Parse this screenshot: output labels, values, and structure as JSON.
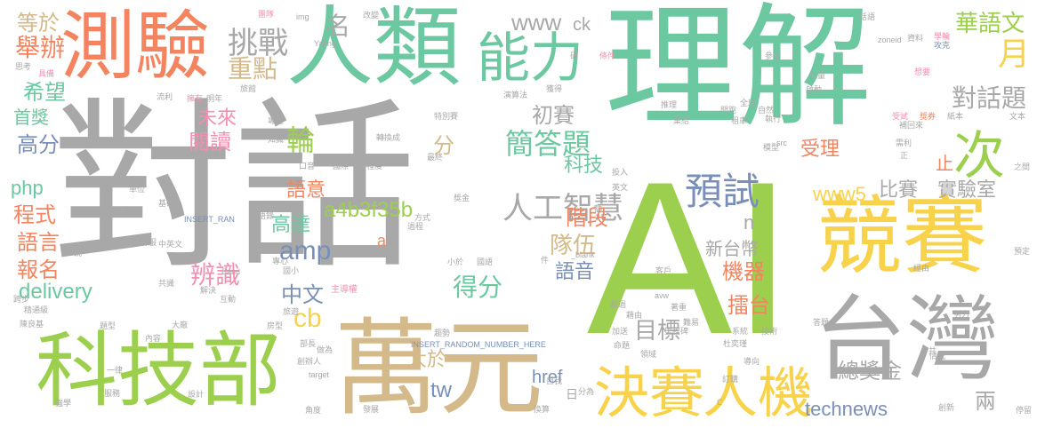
{
  "words": [
    {
      "text": "對話",
      "color": "#a8a8a8"
    },
    {
      "text": "理解",
      "color": "#6cc8a0"
    },
    {
      "text": "AI",
      "color": "#9ccf4e"
    },
    {
      "text": "人類",
      "color": "#6cc8a0"
    },
    {
      "text": "測驗",
      "color": "#f4845f"
    },
    {
      "text": "能力",
      "color": "#6cc8a0"
    },
    {
      "text": "競賽",
      "color": "#f7d24a"
    },
    {
      "text": "台灣",
      "color": "#a8a8a8"
    },
    {
      "text": "萬元",
      "color": "#d4b98a"
    },
    {
      "text": "科技部",
      "color": "#9ccf4e"
    },
    {
      "text": "決賽",
      "color": "#f7d24a"
    },
    {
      "text": "人機",
      "color": "#f7d24a"
    },
    {
      "text": "次",
      "color": "#9ccf4e"
    },
    {
      "text": "預試",
      "color": "#7a8fb8"
    },
    {
      "text": "人工智慧",
      "color": "#a8a8a8"
    },
    {
      "text": "對話題",
      "color": "#a8a8a8"
    },
    {
      "text": "華語文",
      "color": "#9ccf4e"
    },
    {
      "text": "月",
      "color": "#f7d24a"
    },
    {
      "text": "挑戰",
      "color": "#a8a8a8"
    },
    {
      "text": "名",
      "color": "#a8a8a8"
    },
    {
      "text": "www",
      "color": "#a8a8a8"
    },
    {
      "text": "ck",
      "color": "#a8a8a8"
    },
    {
      "text": "等於",
      "color": "#d4b98a"
    },
    {
      "text": "舉辦",
      "color": "#f4845f"
    },
    {
      "text": "希望",
      "color": "#6cc8a0"
    },
    {
      "text": "首獎",
      "color": "#6cc8a0"
    },
    {
      "text": "高分",
      "color": "#7a8fb8"
    },
    {
      "text": "php",
      "color": "#6cc8a0"
    },
    {
      "text": "程式",
      "color": "#f4845f"
    },
    {
      "text": "語言",
      "color": "#f4845f"
    },
    {
      "text": "報名",
      "color": "#f4845f"
    },
    {
      "text": "delivery",
      "color": "#6cc8a0"
    },
    {
      "text": "重點",
      "color": "#d4b98a"
    },
    {
      "text": "未來",
      "color": "#f48fb1"
    },
    {
      "text": "閱讀",
      "color": "#f48fb1"
    },
    {
      "text": "輪",
      "color": "#9ccf4e"
    },
    {
      "text": "語意",
      "color": "#f4845f"
    },
    {
      "text": "a4b3f35b",
      "color": "#9ccf4e"
    },
    {
      "text": "高達",
      "color": "#6cc8a0"
    },
    {
      "text": "amp",
      "color": "#7a8fb8"
    },
    {
      "text": "辨識",
      "color": "#f48fb1"
    },
    {
      "text": "中文",
      "color": "#7a8fb8"
    },
    {
      "text": "cb",
      "color": "#f7d24a"
    },
    {
      "text": "簡答題",
      "color": "#6cc8a0"
    },
    {
      "text": "初賽",
      "color": "#a8a8a8"
    },
    {
      "text": "分",
      "color": "#d4b98a"
    },
    {
      "text": "科技",
      "color": "#6cc8a0"
    },
    {
      "text": "階段",
      "color": "#f4845f"
    },
    {
      "text": "隊伍",
      "color": "#d4b98a"
    },
    {
      "text": "比賽",
      "color": "#a8a8a8"
    },
    {
      "text": "實驗室",
      "color": "#a8a8a8"
    },
    {
      "text": "www5",
      "color": "#f7d24a"
    },
    {
      "text": "受理",
      "color": "#f4845f"
    },
    {
      "text": "止",
      "color": "#f4845f"
    },
    {
      "text": "新台幣",
      "color": "#a8a8a8"
    },
    {
      "text": "機器",
      "color": "#f4845f"
    },
    {
      "text": "語音",
      "color": "#7a8fb8"
    },
    {
      "text": "得分",
      "color": "#6cc8a0"
    },
    {
      "text": "擂台",
      "color": "#f4845f"
    },
    {
      "text": "目標",
      "color": "#a8a8a8"
    },
    {
      "text": "大於",
      "color": "#d4b98a"
    },
    {
      "text": "href",
      "color": "#7a8fb8"
    },
    {
      "text": "tw",
      "color": "#7a8fb8"
    },
    {
      "text": "總獎金",
      "color": "#a8a8a8"
    },
    {
      "text": "technews",
      "color": "#7a8fb8"
    },
    {
      "text": "兩",
      "color": "#a8a8a8"
    },
    {
      "text": "n",
      "color": "#a8a8a8"
    },
    {
      "text": "a",
      "color": "#f4845f"
    },
    {
      "text": "INSERT_RANDOM_NUMBER_HERE",
      "color": "#7a8fb8"
    },
    {
      "text": "INSERT_RAN",
      "color": "#7a8fb8"
    },
    {
      "text": "主導權",
      "color": "#f48fb1"
    },
    {
      "text": "_blank",
      "color": "#a8a8a8"
    },
    {
      "text": "img",
      "color": "#a8a8a8"
    },
    {
      "text": "Yating",
      "color": "#a8a8a8"
    },
    {
      "text": "zoneid",
      "color": "#a8a8a8"
    },
    {
      "text": "src",
      "color": "#a8a8a8"
    },
    {
      "text": "Band",
      "color": "#a8a8a8"
    },
    {
      "text": "target",
      "color": "#a8a8a8"
    },
    {
      "text": "avw",
      "color": "#a8a8a8"
    },
    {
      "text": "改變",
      "color": "#a8a8a8"
    },
    {
      "text": "團隊",
      "color": "#f48fb1"
    },
    {
      "text": "研",
      "color": "#a8a8a8"
    },
    {
      "text": "條件",
      "color": "#f48fb1"
    },
    {
      "text": "資料",
      "color": "#a8a8a8"
    },
    {
      "text": "學輪",
      "color": "#f48fb1"
    },
    {
      "text": "攻克",
      "color": "#7a8fb8"
    },
    {
      "text": "思考",
      "color": "#a8a8a8"
    },
    {
      "text": "具備",
      "color": "#f48fb1"
    },
    {
      "text": "流利",
      "color": "#a8a8a8"
    },
    {
      "text": "旅館",
      "color": "#a8a8a8"
    },
    {
      "text": "擁有",
      "color": "#f48fb1"
    },
    {
      "text": "明年",
      "color": "#a8a8a8"
    },
    {
      "text": "演算法",
      "color": "#a8a8a8"
    },
    {
      "text": "獲得",
      "color": "#a8a8a8"
    },
    {
      "text": "推理",
      "color": "#a8a8a8"
    },
    {
      "text": "全球",
      "color": "#a8a8a8"
    },
    {
      "text": "自然",
      "color": "#a8a8a8"
    },
    {
      "text": "執行",
      "color": "#a8a8a8"
    },
    {
      "text": "開跑",
      "color": "#a8a8a8"
    },
    {
      "text": "想要",
      "color": "#f48fb1"
    },
    {
      "text": "能量",
      "color": "#a8a8a8"
    },
    {
      "text": "啟動",
      "color": "#a8a8a8"
    },
    {
      "text": "受試",
      "color": "#f48fb1"
    },
    {
      "text": "獎券",
      "color": "#f4845f"
    },
    {
      "text": "紙本",
      "color": "#a8a8a8"
    },
    {
      "text": "文本",
      "color": "#a8a8a8"
    },
    {
      "text": "補回來",
      "color": "#a8a8a8"
    },
    {
      "text": "需利",
      "color": "#a8a8a8"
    },
    {
      "text": "之間",
      "color": "#a8a8a8"
    },
    {
      "text": "專注",
      "color": "#a8a8a8"
    },
    {
      "text": "轉換成",
      "color": "#a8a8a8"
    },
    {
      "text": "集結",
      "color": "#a8a8a8"
    },
    {
      "text": "租車",
      "color": "#a8a8a8"
    },
    {
      "text": "模型",
      "color": "#a8a8a8"
    },
    {
      "text": "知識",
      "color": "#a8a8a8"
    },
    {
      "text": "國際",
      "color": "#a8a8a8"
    },
    {
      "text": "程度",
      "color": "#a8a8a8"
    },
    {
      "text": "口音",
      "color": "#a8a8a8"
    },
    {
      "text": "最終",
      "color": "#a8a8a8"
    },
    {
      "text": "單位",
      "color": "#a8a8a8"
    },
    {
      "text": "基礎",
      "color": "#a8a8a8"
    },
    {
      "text": "獎勵金",
      "color": "#a8a8a8"
    },
    {
      "text": "語錄",
      "color": "#a8a8a8"
    },
    {
      "text": "投入",
      "color": "#a8a8a8"
    },
    {
      "text": "英文",
      "color": "#a8a8a8"
    },
    {
      "text": "獎金",
      "color": "#a8a8a8"
    },
    {
      "text": "灰難",
      "color": "#a8a8a8"
    },
    {
      "text": "中英文",
      "color": "#a8a8a8"
    },
    {
      "text": "客服",
      "color": "#a8a8a8"
    },
    {
      "text": "國小",
      "color": "#a8a8a8"
    },
    {
      "text": "專心",
      "color": "#a8a8a8"
    },
    {
      "text": "說",
      "color": "#a8a8a8"
    },
    {
      "text": "共識",
      "color": "#a8a8a8"
    },
    {
      "text": "解決",
      "color": "#a8a8a8"
    },
    {
      "text": "跨步",
      "color": "#a8a8a8"
    },
    {
      "text": "精通級",
      "color": "#a8a8a8"
    },
    {
      "text": "互動",
      "color": "#a8a8a8"
    },
    {
      "text": "陳良基",
      "color": "#a8a8a8"
    },
    {
      "text": "題型",
      "color": "#a8a8a8"
    },
    {
      "text": "趨勢",
      "color": "#a8a8a8"
    },
    {
      "text": "內容",
      "color": "#a8a8a8"
    },
    {
      "text": "大廠",
      "color": "#a8a8a8"
    },
    {
      "text": "部長",
      "color": "#a8a8a8"
    },
    {
      "text": "房型",
      "color": "#a8a8a8"
    },
    {
      "text": "一律",
      "color": "#a8a8a8"
    },
    {
      "text": "創辦人",
      "color": "#a8a8a8"
    },
    {
      "text": "做為",
      "color": "#a8a8a8"
    },
    {
      "text": "服務",
      "color": "#a8a8a8"
    },
    {
      "text": "強學",
      "color": "#a8a8a8"
    },
    {
      "text": "設計",
      "color": "#a8a8a8"
    },
    {
      "text": "角度",
      "color": "#a8a8a8"
    },
    {
      "text": "發展",
      "color": "#a8a8a8"
    },
    {
      "text": "自我",
      "color": "#a8a8a8"
    },
    {
      "text": "換算",
      "color": "#a8a8a8"
    },
    {
      "text": "分為",
      "color": "#a8a8a8"
    },
    {
      "text": "日",
      "color": "#a8a8a8"
    },
    {
      "text": "領域",
      "color": "#a8a8a8"
    },
    {
      "text": "命題",
      "color": "#a8a8a8"
    },
    {
      "text": "加送",
      "color": "#a8a8a8"
    },
    {
      "text": "里程碑",
      "color": "#a8a8a8"
    },
    {
      "text": "杜奕瑾",
      "color": "#a8a8a8"
    },
    {
      "text": "導向",
      "color": "#a8a8a8"
    },
    {
      "text": "訂購",
      "color": "#a8a8a8"
    },
    {
      "text": "系統",
      "color": "#a8a8a8"
    },
    {
      "text": "技術",
      "color": "#a8a8a8"
    },
    {
      "text": "答題",
      "color": "#a8a8a8"
    },
    {
      "text": "創新",
      "color": "#a8a8a8"
    },
    {
      "text": "停留",
      "color": "#a8a8a8"
    },
    {
      "text": "努力",
      "color": "#a8a8a8"
    },
    {
      "text": "情況",
      "color": "#a8a8a8"
    },
    {
      "text": "超過",
      "color": "#a8a8a8"
    },
    {
      "text": "藉由",
      "color": "#a8a8a8"
    },
    {
      "text": "客戶",
      "color": "#a8a8a8"
    },
    {
      "text": "難易",
      "color": "#a8a8a8"
    },
    {
      "text": "著重",
      "color": "#a8a8a8"
    },
    {
      "text": "國語",
      "color": "#a8a8a8"
    },
    {
      "text": "小於",
      "color": "#a8a8a8"
    },
    {
      "text": "方式",
      "color": "#a8a8a8"
    },
    {
      "text": "過程",
      "color": "#a8a8a8"
    },
    {
      "text": "特別賽",
      "color": "#a8a8a8"
    },
    {
      "text": "參考",
      "color": "#a8a8a8"
    },
    {
      "text": "話語",
      "color": "#a8a8a8"
    },
    {
      "text": "預定",
      "color": "#a8a8a8"
    },
    {
      "text": "經由",
      "color": "#a8a8a8"
    },
    {
      "text": "旅遊",
      "color": "#a8a8a8"
    },
    {
      "text": "件",
      "color": "#a8a8a8"
    },
    {
      "text": "額",
      "color": "#a8a8a8"
    },
    {
      "text": "C",
      "color": "#a8a8a8"
    },
    {
      "text": "共",
      "color": "#a8a8a8"
    },
    {
      "text": "正",
      "color": "#a8a8a8"
    }
  ]
}
